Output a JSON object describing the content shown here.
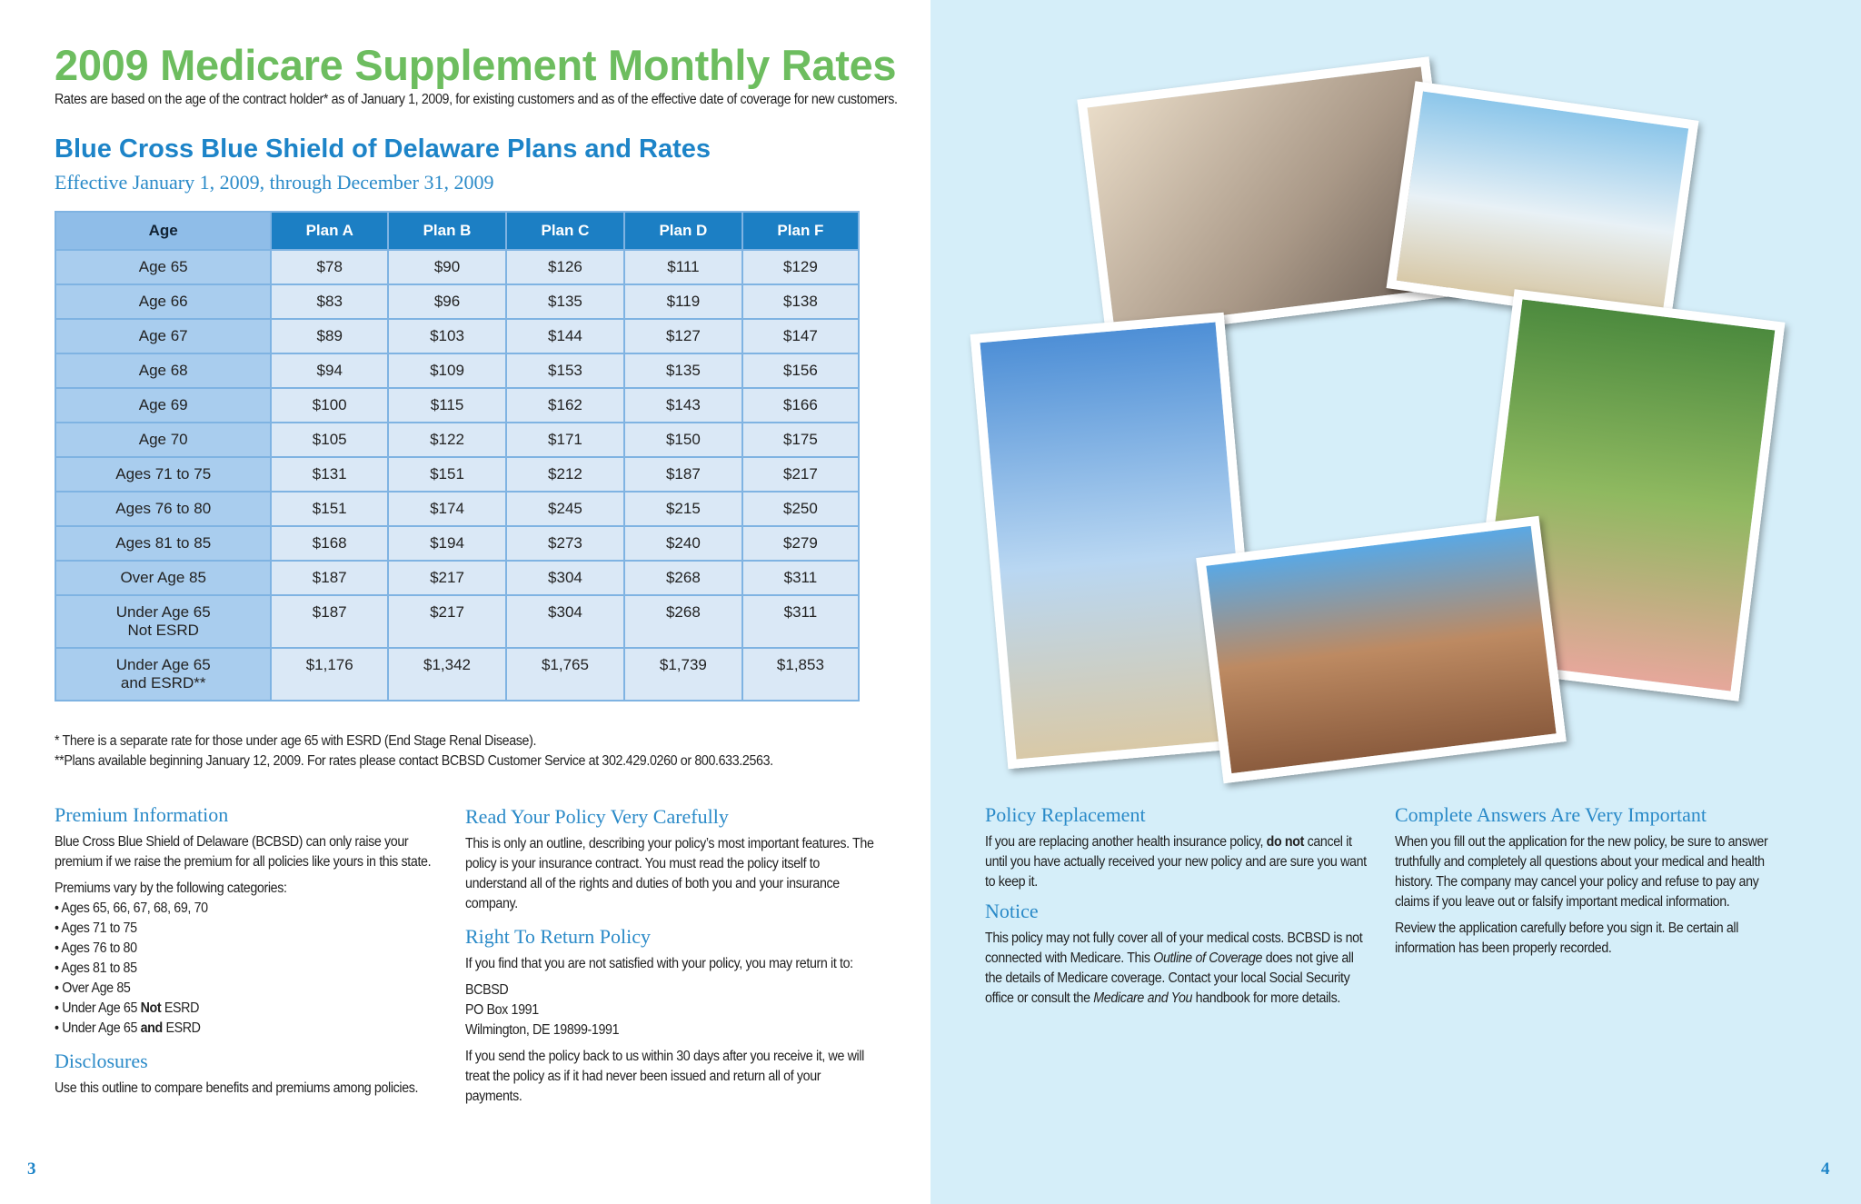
{
  "left": {
    "title": "2009 Medicare Supplement Monthly Rates",
    "intro": "Rates are based on the age of the contract holder* as of January 1, 2009, for existing customers and as of the effective date of coverage for new customers.",
    "subtitle": "Blue Cross Blue Shield of Delaware Plans and Rates",
    "effective": "Effective January 1, 2009, through December 31, 2009",
    "table": {
      "header": [
        "Age",
        "Plan A",
        "Plan B",
        "Plan C",
        "Plan D",
        "Plan F"
      ],
      "rows": [
        [
          "Age 65",
          "$78",
          "$90",
          "$126",
          "$111",
          "$129"
        ],
        [
          "Age 66",
          "$83",
          "$96",
          "$135",
          "$119",
          "$138"
        ],
        [
          "Age 67",
          "$89",
          "$103",
          "$144",
          "$127",
          "$147"
        ],
        [
          "Age 68",
          "$94",
          "$109",
          "$153",
          "$135",
          "$156"
        ],
        [
          "Age 69",
          "$100",
          "$115",
          "$162",
          "$143",
          "$166"
        ],
        [
          "Age 70",
          "$105",
          "$122",
          "$171",
          "$150",
          "$175"
        ],
        [
          "Ages 71 to 75",
          "$131",
          "$151",
          "$212",
          "$187",
          "$217"
        ],
        [
          "Ages 76 to 80",
          "$151",
          "$174",
          "$245",
          "$215",
          "$250"
        ],
        [
          "Ages 81 to 85",
          "$168",
          "$194",
          "$273",
          "$240",
          "$279"
        ],
        [
          "Over Age 85",
          "$187",
          "$217",
          "$304",
          "$268",
          "$311"
        ],
        [
          "Under Age 65\nNot ESRD",
          "$187",
          "$217",
          "$304",
          "$268",
          "$311"
        ],
        [
          "Under Age 65\nand ESRD**",
          "$1,176",
          "$1,342",
          "$1,765",
          "$1,739",
          "$1,853"
        ]
      ]
    },
    "footnotes": [
      "* There is a separate rate for those under age 65 with ESRD (End Stage Renal Disease).",
      "**Plans available beginning January 12, 2009. For rates please contact BCBSD Customer Service at 302.429.0260 or 800.633.2563."
    ],
    "premium": {
      "heading": "Premium Information",
      "text": "Blue Cross Blue Shield of Delaware (BCBSD) can only raise your premium if we raise the premium for all policies like yours in this state.",
      "lead": "Premiums vary by the following categories:",
      "items": [
        [
          "• Ages 65, 66, 67, 68, 69, 70"
        ],
        [
          "• Ages 71 to 75"
        ],
        [
          "• Ages 76 to 80"
        ],
        [
          "• Ages 81 to 85"
        ],
        [
          "• Over Age 85"
        ],
        [
          "• Under Age 65 ",
          "Not",
          " ESRD"
        ],
        [
          "• Under Age 65 ",
          "and",
          " ESRD"
        ]
      ]
    },
    "disclosures": {
      "heading": "Disclosures",
      "text": "Use this outline to compare benefits and premiums among policies."
    },
    "read": {
      "heading": "Read Your Policy Very Carefully",
      "text": "This is only an outline, describing your policy’s most important features. The policy is your insurance contract. You must read the policy itself to understand all of the rights and duties of both you and your insurance company."
    },
    "return": {
      "heading": "Right To Return Policy",
      "text": "If you find that you are not satisfied with your policy, you may return it to:",
      "address": [
        "BCBSD",
        "PO Box 1991",
        "Wilmington, DE 19899-1991"
      ],
      "text2": "If you send the policy back to us within 30 days after you receive it, we will treat the policy as if it had never been issued and return all of your payments."
    },
    "page": "3"
  },
  "right": {
    "replacement": {
      "heading": "Policy Replacement",
      "text": [
        "If you are replacing another health insurance policy, ",
        "do not",
        " cancel it until you have actually received your new policy and are sure you want to keep it."
      ]
    },
    "notice": {
      "heading": "Notice",
      "text": [
        "This policy may not fully cover all of your medical costs. BCBSD is not connected with Medicare. This ",
        "Outline of Coverage",
        " does not give all the details of Medicare coverage. Contact your local Social Security office or consult the ",
        "Medicare and You",
        " handbook for more details."
      ]
    },
    "answers": {
      "heading": "Complete Answers Are Very Important",
      "text": "When you fill out the application for the new policy, be sure to answer truthfully and completely all questions about your medical and health history. The company may cancel your policy and refuse to pay any claims if you leave out or falsify important medical information.",
      "text2": "Review the application carefully before you sign it. Be certain all information has been properly recorded."
    },
    "page": "4"
  }
}
